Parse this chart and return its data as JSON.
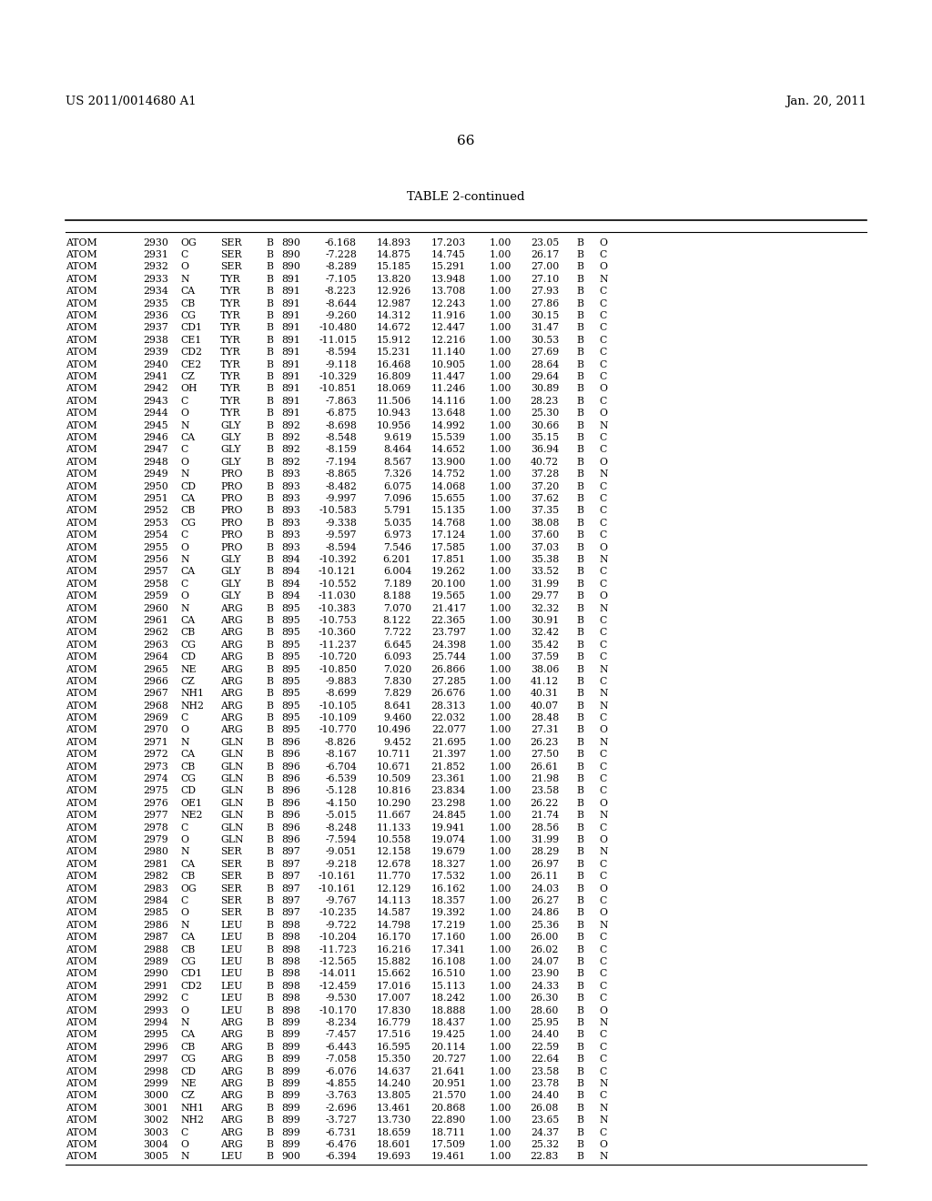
{
  "header_left": "US 2011/0014680 A1",
  "header_right": "Jan. 20, 2011",
  "page_number": "66",
  "table_title": "TABLE 2-continued",
  "rows": [
    [
      "ATOM",
      "2930",
      "OG",
      "SER",
      "B",
      "890",
      "-6.168",
      "14.893",
      "17.203",
      "1.00",
      "23.05",
      "B",
      "O"
    ],
    [
      "ATOM",
      "2931",
      "C",
      "SER",
      "B",
      "890",
      "-7.228",
      "14.875",
      "14.745",
      "1.00",
      "26.17",
      "B",
      "C"
    ],
    [
      "ATOM",
      "2932",
      "O",
      "SER",
      "B",
      "890",
      "-8.289",
      "15.185",
      "15.291",
      "1.00",
      "27.00",
      "B",
      "O"
    ],
    [
      "ATOM",
      "2933",
      "N",
      "TYR",
      "B",
      "891",
      "-7.105",
      "13.820",
      "13.948",
      "1.00",
      "27.10",
      "B",
      "N"
    ],
    [
      "ATOM",
      "2934",
      "CA",
      "TYR",
      "B",
      "891",
      "-8.223",
      "12.926",
      "13.708",
      "1.00",
      "27.93",
      "B",
      "C"
    ],
    [
      "ATOM",
      "2935",
      "CB",
      "TYR",
      "B",
      "891",
      "-8.644",
      "12.987",
      "12.243",
      "1.00",
      "27.86",
      "B",
      "C"
    ],
    [
      "ATOM",
      "2936",
      "CG",
      "TYR",
      "B",
      "891",
      "-9.260",
      "14.312",
      "11.916",
      "1.00",
      "30.15",
      "B",
      "C"
    ],
    [
      "ATOM",
      "2937",
      "CD1",
      "TYR",
      "B",
      "891",
      "-10.480",
      "14.672",
      "12.447",
      "1.00",
      "31.47",
      "B",
      "C"
    ],
    [
      "ATOM",
      "2938",
      "CE1",
      "TYR",
      "B",
      "891",
      "-11.015",
      "15.912",
      "12.216",
      "1.00",
      "30.53",
      "B",
      "C"
    ],
    [
      "ATOM",
      "2939",
      "CD2",
      "TYR",
      "B",
      "891",
      "-8.594",
      "15.231",
      "11.140",
      "1.00",
      "27.69",
      "B",
      "C"
    ],
    [
      "ATOM",
      "2940",
      "CE2",
      "TYR",
      "B",
      "891",
      "-9.118",
      "16.468",
      "10.905",
      "1.00",
      "28.64",
      "B",
      "C"
    ],
    [
      "ATOM",
      "2941",
      "CZ",
      "TYR",
      "B",
      "891",
      "-10.329",
      "16.809",
      "11.447",
      "1.00",
      "29.64",
      "B",
      "C"
    ],
    [
      "ATOM",
      "2942",
      "OH",
      "TYR",
      "B",
      "891",
      "-10.851",
      "18.069",
      "11.246",
      "1.00",
      "30.89",
      "B",
      "O"
    ],
    [
      "ATOM",
      "2943",
      "C",
      "TYR",
      "B",
      "891",
      "-7.863",
      "11.506",
      "14.116",
      "1.00",
      "28.23",
      "B",
      "C"
    ],
    [
      "ATOM",
      "2944",
      "O",
      "TYR",
      "B",
      "891",
      "-6.875",
      "10.943",
      "13.648",
      "1.00",
      "25.30",
      "B",
      "O"
    ],
    [
      "ATOM",
      "2945",
      "N",
      "GLY",
      "B",
      "892",
      "-8.698",
      "10.956",
      "14.992",
      "1.00",
      "30.66",
      "B",
      "N"
    ],
    [
      "ATOM",
      "2946",
      "CA",
      "GLY",
      "B",
      "892",
      "-8.548",
      "9.619",
      "15.539",
      "1.00",
      "35.15",
      "B",
      "C"
    ],
    [
      "ATOM",
      "2947",
      "C",
      "GLY",
      "B",
      "892",
      "-8.159",
      "8.464",
      "14.652",
      "1.00",
      "36.94",
      "B",
      "C"
    ],
    [
      "ATOM",
      "2948",
      "O",
      "GLY",
      "B",
      "892",
      "-7.194",
      "8.567",
      "13.900",
      "1.00",
      "40.72",
      "B",
      "O"
    ],
    [
      "ATOM",
      "2949",
      "N",
      "PRO",
      "B",
      "893",
      "-8.865",
      "7.326",
      "14.752",
      "1.00",
      "37.28",
      "B",
      "N"
    ],
    [
      "ATOM",
      "2950",
      "CD",
      "PRO",
      "B",
      "893",
      "-8.482",
      "6.075",
      "14.068",
      "1.00",
      "37.20",
      "B",
      "C"
    ],
    [
      "ATOM",
      "2951",
      "CA",
      "PRO",
      "B",
      "893",
      "-9.997",
      "7.096",
      "15.655",
      "1.00",
      "37.62",
      "B",
      "C"
    ],
    [
      "ATOM",
      "2952",
      "CB",
      "PRO",
      "B",
      "893",
      "-10.583",
      "5.791",
      "15.135",
      "1.00",
      "37.35",
      "B",
      "C"
    ],
    [
      "ATOM",
      "2953",
      "CG",
      "PRO",
      "B",
      "893",
      "-9.338",
      "5.035",
      "14.768",
      "1.00",
      "38.08",
      "B",
      "C"
    ],
    [
      "ATOM",
      "2954",
      "C",
      "PRO",
      "B",
      "893",
      "-9.597",
      "6.973",
      "17.124",
      "1.00",
      "37.60",
      "B",
      "C"
    ],
    [
      "ATOM",
      "2955",
      "O",
      "PRO",
      "B",
      "893",
      "-8.594",
      "7.546",
      "17.585",
      "1.00",
      "37.03",
      "B",
      "O"
    ],
    [
      "ATOM",
      "2956",
      "N",
      "GLY",
      "B",
      "894",
      "-10.392",
      "6.201",
      "17.851",
      "1.00",
      "35.38",
      "B",
      "N"
    ],
    [
      "ATOM",
      "2957",
      "CA",
      "GLY",
      "B",
      "894",
      "-10.121",
      "6.004",
      "19.262",
      "1.00",
      "33.52",
      "B",
      "C"
    ],
    [
      "ATOM",
      "2958",
      "C",
      "GLY",
      "B",
      "894",
      "-10.552",
      "7.189",
      "20.100",
      "1.00",
      "31.99",
      "B",
      "C"
    ],
    [
      "ATOM",
      "2959",
      "O",
      "GLY",
      "B",
      "894",
      "-11.030",
      "8.188",
      "19.565",
      "1.00",
      "29.77",
      "B",
      "O"
    ],
    [
      "ATOM",
      "2960",
      "N",
      "ARG",
      "B",
      "895",
      "-10.383",
      "7.070",
      "21.417",
      "1.00",
      "32.32",
      "B",
      "N"
    ],
    [
      "ATOM",
      "2961",
      "CA",
      "ARG",
      "B",
      "895",
      "-10.753",
      "8.122",
      "22.365",
      "1.00",
      "30.91",
      "B",
      "C"
    ],
    [
      "ATOM",
      "2962",
      "CB",
      "ARG",
      "B",
      "895",
      "-10.360",
      "7.722",
      "23.797",
      "1.00",
      "32.42",
      "B",
      "C"
    ],
    [
      "ATOM",
      "2963",
      "CG",
      "ARG",
      "B",
      "895",
      "-11.237",
      "6.645",
      "24.398",
      "1.00",
      "35.42",
      "B",
      "C"
    ],
    [
      "ATOM",
      "2964",
      "CD",
      "ARG",
      "B",
      "895",
      "-10.720",
      "6.093",
      "25.744",
      "1.00",
      "37.59",
      "B",
      "C"
    ],
    [
      "ATOM",
      "2965",
      "NE",
      "ARG",
      "B",
      "895",
      "-10.850",
      "7.020",
      "26.866",
      "1.00",
      "38.06",
      "B",
      "N"
    ],
    [
      "ATOM",
      "2966",
      "CZ",
      "ARG",
      "B",
      "895",
      "-9.883",
      "7.830",
      "27.285",
      "1.00",
      "41.12",
      "B",
      "C"
    ],
    [
      "ATOM",
      "2967",
      "NH1",
      "ARG",
      "B",
      "895",
      "-8.699",
      "7.829",
      "26.676",
      "1.00",
      "40.31",
      "B",
      "N"
    ],
    [
      "ATOM",
      "2968",
      "NH2",
      "ARG",
      "B",
      "895",
      "-10.105",
      "8.641",
      "28.313",
      "1.00",
      "40.07",
      "B",
      "N"
    ],
    [
      "ATOM",
      "2969",
      "C",
      "ARG",
      "B",
      "895",
      "-10.109",
      "9.460",
      "22.032",
      "1.00",
      "28.48",
      "B",
      "C"
    ],
    [
      "ATOM",
      "2970",
      "O",
      "ARG",
      "B",
      "895",
      "-10.770",
      "10.496",
      "22.077",
      "1.00",
      "27.31",
      "B",
      "O"
    ],
    [
      "ATOM",
      "2971",
      "N",
      "GLN",
      "B",
      "896",
      "-8.826",
      "9.452",
      "21.695",
      "1.00",
      "26.23",
      "B",
      "N"
    ],
    [
      "ATOM",
      "2972",
      "CA",
      "GLN",
      "B",
      "896",
      "-8.167",
      "10.711",
      "21.397",
      "1.00",
      "27.50",
      "B",
      "C"
    ],
    [
      "ATOM",
      "2973",
      "CB",
      "GLN",
      "B",
      "896",
      "-6.704",
      "10.671",
      "21.852",
      "1.00",
      "26.61",
      "B",
      "C"
    ],
    [
      "ATOM",
      "2974",
      "CG",
      "GLN",
      "B",
      "896",
      "-6.539",
      "10.509",
      "23.361",
      "1.00",
      "21.98",
      "B",
      "C"
    ],
    [
      "ATOM",
      "2975",
      "CD",
      "GLN",
      "B",
      "896",
      "-5.128",
      "10.816",
      "23.834",
      "1.00",
      "23.58",
      "B",
      "C"
    ],
    [
      "ATOM",
      "2976",
      "OE1",
      "GLN",
      "B",
      "896",
      "-4.150",
      "10.290",
      "23.298",
      "1.00",
      "26.22",
      "B",
      "O"
    ],
    [
      "ATOM",
      "2977",
      "NE2",
      "GLN",
      "B",
      "896",
      "-5.015",
      "11.667",
      "24.845",
      "1.00",
      "21.74",
      "B",
      "N"
    ],
    [
      "ATOM",
      "2978",
      "C",
      "GLN",
      "B",
      "896",
      "-8.248",
      "11.133",
      "19.941",
      "1.00",
      "28.56",
      "B",
      "C"
    ],
    [
      "ATOM",
      "2979",
      "O",
      "GLN",
      "B",
      "896",
      "-7.594",
      "10.558",
      "19.074",
      "1.00",
      "31.99",
      "B",
      "O"
    ],
    [
      "ATOM",
      "2980",
      "N",
      "SER",
      "B",
      "897",
      "-9.051",
      "12.158",
      "19.679",
      "1.00",
      "28.29",
      "B",
      "N"
    ],
    [
      "ATOM",
      "2981",
      "CA",
      "SER",
      "B",
      "897",
      "-9.218",
      "12.678",
      "18.327",
      "1.00",
      "26.97",
      "B",
      "C"
    ],
    [
      "ATOM",
      "2982",
      "CB",
      "SER",
      "B",
      "897",
      "-10.161",
      "11.770",
      "17.532",
      "1.00",
      "26.11",
      "B",
      "C"
    ],
    [
      "ATOM",
      "2983",
      "OG",
      "SER",
      "B",
      "897",
      "-10.161",
      "12.129",
      "16.162",
      "1.00",
      "24.03",
      "B",
      "O"
    ],
    [
      "ATOM",
      "2984",
      "C",
      "SER",
      "B",
      "897",
      "-9.767",
      "14.113",
      "18.357",
      "1.00",
      "26.27",
      "B",
      "C"
    ],
    [
      "ATOM",
      "2985",
      "O",
      "SER",
      "B",
      "897",
      "-10.235",
      "14.587",
      "19.392",
      "1.00",
      "24.86",
      "B",
      "O"
    ],
    [
      "ATOM",
      "2986",
      "N",
      "LEU",
      "B",
      "898",
      "-9.722",
      "14.798",
      "17.219",
      "1.00",
      "25.36",
      "B",
      "N"
    ],
    [
      "ATOM",
      "2987",
      "CA",
      "LEU",
      "B",
      "898",
      "-10.204",
      "16.170",
      "17.160",
      "1.00",
      "26.00",
      "B",
      "C"
    ],
    [
      "ATOM",
      "2988",
      "CB",
      "LEU",
      "B",
      "898",
      "-11.723",
      "16.216",
      "17.341",
      "1.00",
      "26.02",
      "B",
      "C"
    ],
    [
      "ATOM",
      "2989",
      "CG",
      "LEU",
      "B",
      "898",
      "-12.565",
      "15.882",
      "16.108",
      "1.00",
      "24.07",
      "B",
      "C"
    ],
    [
      "ATOM",
      "2990",
      "CD1",
      "LEU",
      "B",
      "898",
      "-14.011",
      "15.662",
      "16.510",
      "1.00",
      "23.90",
      "B",
      "C"
    ],
    [
      "ATOM",
      "2991",
      "CD2",
      "LEU",
      "B",
      "898",
      "-12.459",
      "17.016",
      "15.113",
      "1.00",
      "24.33",
      "B",
      "C"
    ],
    [
      "ATOM",
      "2992",
      "C",
      "LEU",
      "B",
      "898",
      "-9.530",
      "17.007",
      "18.242",
      "1.00",
      "26.30",
      "B",
      "C"
    ],
    [
      "ATOM",
      "2993",
      "O",
      "LEU",
      "B",
      "898",
      "-10.170",
      "17.830",
      "18.888",
      "1.00",
      "28.60",
      "B",
      "O"
    ],
    [
      "ATOM",
      "2994",
      "N",
      "ARG",
      "B",
      "899",
      "-8.234",
      "16.779",
      "18.437",
      "1.00",
      "25.95",
      "B",
      "N"
    ],
    [
      "ATOM",
      "2995",
      "CA",
      "ARG",
      "B",
      "899",
      "-7.457",
      "17.516",
      "19.425",
      "1.00",
      "24.40",
      "B",
      "C"
    ],
    [
      "ATOM",
      "2996",
      "CB",
      "ARG",
      "B",
      "899",
      "-6.443",
      "16.595",
      "20.114",
      "1.00",
      "22.59",
      "B",
      "C"
    ],
    [
      "ATOM",
      "2997",
      "CG",
      "ARG",
      "B",
      "899",
      "-7.058",
      "15.350",
      "20.727",
      "1.00",
      "22.64",
      "B",
      "C"
    ],
    [
      "ATOM",
      "2998",
      "CD",
      "ARG",
      "B",
      "899",
      "-6.076",
      "14.637",
      "21.641",
      "1.00",
      "23.58",
      "B",
      "C"
    ],
    [
      "ATOM",
      "2999",
      "NE",
      "ARG",
      "B",
      "899",
      "-4.855",
      "14.240",
      "20.951",
      "1.00",
      "23.78",
      "B",
      "N"
    ],
    [
      "ATOM",
      "3000",
      "CZ",
      "ARG",
      "B",
      "899",
      "-3.763",
      "13.805",
      "21.570",
      "1.00",
      "24.40",
      "B",
      "C"
    ],
    [
      "ATOM",
      "3001",
      "NH1",
      "ARG",
      "B",
      "899",
      "-2.696",
      "13.461",
      "20.868",
      "1.00",
      "26.08",
      "B",
      "N"
    ],
    [
      "ATOM",
      "3002",
      "NH2",
      "ARG",
      "B",
      "899",
      "-3.727",
      "13.730",
      "22.890",
      "1.00",
      "23.65",
      "B",
      "N"
    ],
    [
      "ATOM",
      "3003",
      "C",
      "ARG",
      "B",
      "899",
      "-6.731",
      "18.659",
      "18.711",
      "1.00",
      "24.37",
      "B",
      "C"
    ],
    [
      "ATOM",
      "3004",
      "O",
      "ARG",
      "B",
      "899",
      "-6.476",
      "18.601",
      "17.509",
      "1.00",
      "25.32",
      "B",
      "O"
    ],
    [
      "ATOM",
      "3005",
      "N",
      "LEU",
      "B",
      "900",
      "-6.394",
      "19.693",
      "19.461",
      "1.00",
      "22.83",
      "B",
      "N"
    ]
  ],
  "bg_color": "#ffffff",
  "text_color": "#000000",
  "font_size": 7.8,
  "header_font_size": 9.5,
  "title_font_size": 9.5
}
